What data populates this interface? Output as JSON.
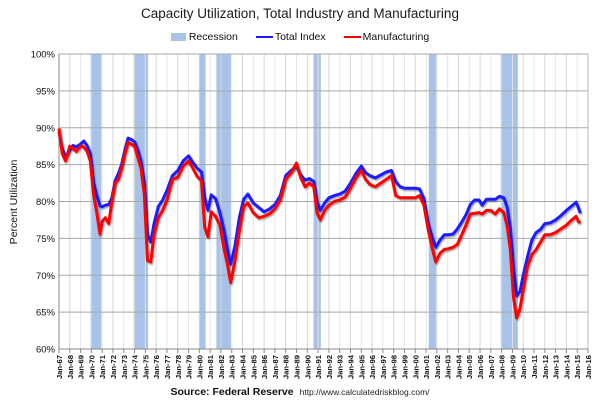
{
  "chart_data": {
    "type": "line",
    "title": "Capacity Utilization, Total Industry and Manufacturing",
    "xlabel": "",
    "ylabel": "Percent Utilization",
    "ylim": [
      60,
      100
    ],
    "yticks": [
      "60%",
      "65%",
      "70%",
      "75%",
      "80%",
      "85%",
      "90%",
      "95%",
      "100%"
    ],
    "ytick_values": [
      60,
      65,
      70,
      75,
      80,
      85,
      90,
      95,
      100
    ],
    "xlim": [
      1967,
      2016
    ],
    "xticks": [
      "Jan-67",
      "Jan-68",
      "Jan-69",
      "Jan-70",
      "Jan-71",
      "Jan-72",
      "Jan-73",
      "Jan-74",
      "Jan-75",
      "Jan-76",
      "Jan-77",
      "Jan-78",
      "Jan-79",
      "Jan-80",
      "Jan-81",
      "Jan-82",
      "Jan-83",
      "Jan-84",
      "Jan-85",
      "Jan-86",
      "Jan-87",
      "Jan-88",
      "Jan-89",
      "Jan-90",
      "Jan-91",
      "Jan-92",
      "Jan-93",
      "Jan-94",
      "Jan-95",
      "Jan-96",
      "Jan-97",
      "Jan-98",
      "Jan-99",
      "Jan-00",
      "Jan-01",
      "Jan-02",
      "Jan-03",
      "Jan-04",
      "Jan-05",
      "Jan-06",
      "Jan-07",
      "Jan-08",
      "Jan-09",
      "Jan-10",
      "Jan-11",
      "Jan-12",
      "Jan-13",
      "Jan-14",
      "Jan-15",
      "Jan-16"
    ],
    "grid": true,
    "legend": {
      "position": "top-center",
      "entries": [
        {
          "name": "Recession",
          "type": "box",
          "color": "#a7c3e8"
        },
        {
          "name": "Total Index",
          "type": "line",
          "color": "#1a1aff"
        },
        {
          "name": "Manufacturing",
          "type": "line",
          "color": "#ff0000"
        }
      ]
    },
    "recessions": [
      {
        "start": 1969.92,
        "end": 1970.92
      },
      {
        "start": 1973.92,
        "end": 1975.25
      },
      {
        "start": 1980.0,
        "end": 1980.58
      },
      {
        "start": 1981.58,
        "end": 1982.92
      },
      {
        "start": 1990.58,
        "end": 1991.25
      },
      {
        "start": 2001.25,
        "end": 2001.92
      },
      {
        "start": 2007.92,
        "end": 2009.5
      }
    ],
    "series": [
      {
        "name": "Total Index",
        "color": "#1a1aff",
        "x": [
          1967.0,
          1967.3,
          1967.6,
          1968.0,
          1968.3,
          1968.6,
          1969.0,
          1969.3,
          1969.6,
          1969.9,
          1970.2,
          1970.5,
          1970.8,
          1971.0,
          1971.3,
          1971.6,
          1971.9,
          1972.2,
          1972.5,
          1972.8,
          1973.1,
          1973.4,
          1973.7,
          1974.0,
          1974.3,
          1974.6,
          1974.9,
          1975.2,
          1975.5,
          1975.8,
          1976.2,
          1976.6,
          1977.0,
          1977.5,
          1978.0,
          1978.5,
          1979.0,
          1979.4,
          1979.8,
          1980.2,
          1980.5,
          1980.8,
          1981.1,
          1981.5,
          1981.9,
          1982.3,
          1982.6,
          1982.9,
          1983.3,
          1983.7,
          1984.1,
          1984.5,
          1985.0,
          1985.5,
          1986.0,
          1986.5,
          1987.0,
          1987.5,
          1988.0,
          1988.5,
          1989.0,
          1989.4,
          1989.8,
          1990.2,
          1990.6,
          1990.9,
          1991.2,
          1991.6,
          1992.0,
          1992.5,
          1993.0,
          1993.5,
          1994.0,
          1994.5,
          1995.0,
          1995.4,
          1995.8,
          1996.3,
          1996.8,
          1997.3,
          1997.8,
          1998.2,
          1998.6,
          1999.0,
          1999.5,
          2000.0,
          2000.4,
          2000.8,
          2001.2,
          2001.6,
          2001.9,
          2002.3,
          2002.7,
          2003.1,
          2003.5,
          2003.9,
          2004.3,
          2004.7,
          2005.1,
          2005.5,
          2005.9,
          2006.2,
          2006.6,
          2007.0,
          2007.4,
          2007.8,
          2008.2,
          2008.5,
          2008.8,
          2009.1,
          2009.4,
          2009.7,
          2010.0,
          2010.4,
          2010.8,
          2011.2,
          2011.6,
          2012.0,
          2012.5,
          2013.0,
          2013.5,
          2014.0,
          2014.5,
          2014.9,
          2015.1,
          2015.3
        ],
        "values": [
          89.4,
          87.2,
          86.0,
          87.0,
          87.6,
          87.4,
          87.8,
          88.2,
          87.6,
          86.5,
          82.6,
          80.8,
          79.4,
          79.3,
          79.5,
          79.6,
          80.5,
          82.8,
          83.8,
          85.0,
          87.0,
          88.6,
          88.4,
          88.1,
          87.0,
          85.5,
          82.5,
          75.5,
          74.5,
          77.0,
          79.3,
          80.2,
          81.5,
          83.5,
          84.2,
          85.5,
          86.2,
          85.3,
          84.5,
          84.0,
          80.5,
          78.8,
          80.9,
          80.4,
          78.5,
          76.0,
          73.5,
          71.5,
          74.0,
          77.8,
          80.3,
          81.0,
          79.8,
          79.2,
          78.6,
          79.0,
          79.6,
          80.8,
          83.5,
          84.2,
          84.8,
          83.6,
          82.9,
          83.1,
          82.7,
          80.0,
          78.8,
          79.8,
          80.5,
          80.8,
          81.0,
          81.4,
          82.5,
          83.8,
          84.8,
          83.9,
          83.5,
          83.2,
          83.6,
          84.0,
          84.2,
          82.7,
          82.0,
          81.8,
          81.8,
          81.8,
          81.7,
          80.4,
          77.0,
          75.0,
          73.8,
          74.8,
          75.5,
          75.5,
          75.6,
          76.3,
          77.2,
          78.2,
          79.6,
          80.2,
          80.2,
          79.5,
          80.3,
          80.3,
          80.3,
          80.7,
          80.5,
          79.3,
          76.5,
          71.0,
          67.2,
          67.8,
          70.0,
          72.5,
          74.8,
          75.8,
          76.2,
          77.0,
          77.1,
          77.5,
          78.1,
          78.8,
          79.4,
          79.9,
          79.2,
          78.4
        ]
      },
      {
        "name": "Manufacturing",
        "color": "#ff0000",
        "x": [
          1967.0,
          1967.3,
          1967.6,
          1968.0,
          1968.3,
          1968.6,
          1969.0,
          1969.3,
          1969.6,
          1969.9,
          1970.2,
          1970.5,
          1970.8,
          1971.0,
          1971.3,
          1971.6,
          1971.9,
          1972.2,
          1972.5,
          1972.8,
          1973.1,
          1973.4,
          1973.7,
          1974.0,
          1974.3,
          1974.6,
          1974.9,
          1975.2,
          1975.5,
          1975.8,
          1976.2,
          1976.6,
          1977.0,
          1977.5,
          1978.0,
          1978.5,
          1979.0,
          1979.4,
          1979.8,
          1980.2,
          1980.5,
          1980.8,
          1981.1,
          1981.5,
          1981.9,
          1982.3,
          1982.6,
          1982.9,
          1983.3,
          1983.7,
          1984.1,
          1984.5,
          1985.0,
          1985.5,
          1986.0,
          1986.5,
          1987.0,
          1987.5,
          1988.0,
          1988.5,
          1989.0,
          1989.4,
          1989.8,
          1990.2,
          1990.6,
          1990.9,
          1991.2,
          1991.6,
          1992.0,
          1992.5,
          1993.0,
          1993.5,
          1994.0,
          1994.5,
          1995.0,
          1995.4,
          1995.8,
          1996.3,
          1996.8,
          1997.3,
          1997.8,
          1998.2,
          1998.6,
          1999.0,
          1999.5,
          2000.0,
          2000.4,
          2000.8,
          2001.2,
          2001.6,
          2001.9,
          2002.3,
          2002.7,
          2003.1,
          2003.5,
          2003.9,
          2004.3,
          2004.7,
          2005.1,
          2005.5,
          2005.9,
          2006.2,
          2006.6,
          2007.0,
          2007.4,
          2007.8,
          2008.2,
          2008.5,
          2008.8,
          2009.1,
          2009.4,
          2009.7,
          2010.0,
          2010.4,
          2010.8,
          2011.2,
          2011.6,
          2012.0,
          2012.5,
          2013.0,
          2013.5,
          2014.0,
          2014.5,
          2014.9,
          2015.1,
          2015.3
        ],
        "values": [
          89.9,
          86.5,
          85.5,
          87.5,
          87.2,
          86.8,
          87.5,
          87.4,
          86.8,
          85.5,
          81.0,
          78.5,
          75.6,
          77.3,
          77.8,
          77.0,
          80.0,
          82.5,
          83.0,
          84.5,
          86.5,
          88.0,
          87.8,
          87.5,
          86.0,
          84.5,
          81.0,
          72.0,
          71.8,
          75.5,
          77.8,
          78.8,
          80.2,
          83.0,
          83.3,
          84.8,
          85.5,
          84.5,
          83.4,
          82.8,
          76.5,
          75.2,
          78.6,
          78.0,
          76.8,
          73.5,
          71.5,
          69.0,
          72.0,
          76.0,
          79.3,
          79.8,
          78.5,
          77.8,
          78.0,
          78.3,
          79.0,
          80.2,
          83.0,
          83.9,
          85.2,
          83.2,
          82.0,
          82.5,
          82.0,
          78.5,
          77.5,
          78.8,
          79.5,
          80.0,
          80.2,
          80.6,
          81.8,
          83.2,
          84.2,
          83.0,
          82.3,
          82.0,
          82.5,
          83.0,
          83.5,
          80.8,
          80.5,
          80.5,
          80.5,
          80.5,
          80.8,
          79.5,
          76.2,
          73.5,
          71.8,
          73.0,
          73.5,
          73.6,
          73.8,
          74.2,
          75.5,
          76.8,
          78.3,
          78.4,
          78.5,
          78.3,
          78.8,
          78.8,
          78.3,
          79.0,
          78.5,
          76.8,
          73.5,
          67.0,
          64.2,
          65.5,
          68.0,
          71.2,
          72.8,
          73.5,
          74.5,
          75.5,
          75.5,
          75.8,
          76.3,
          76.8,
          77.5,
          78.0,
          77.3,
          77.1
        ]
      }
    ]
  },
  "footer": {
    "source": "Source: Federal Reserve",
    "url": "http://www.calculatedriskblog.com/"
  }
}
